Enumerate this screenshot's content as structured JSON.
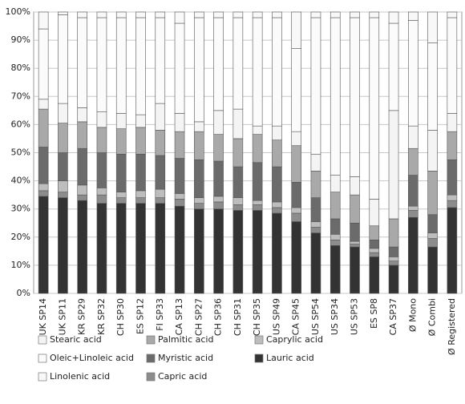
{
  "chart_data": {
    "type": "stacked_bar",
    "categories": [
      "UK SP14",
      "UK SP11",
      "KR SP29",
      "KR SP32",
      "CH SP30",
      "ES SP12",
      "FI SP33",
      "CA SP13",
      "CH SP27",
      "CH SP36",
      "CH SP31",
      "CH SP35",
      "US SP49",
      "CA SP45",
      "US SP54",
      "US SP34",
      "US SP53",
      "ES SP8",
      "CA SP37",
      "Ø Mono",
      "Ø Combi",
      "Ø Registered"
    ],
    "series": [
      {
        "name": "Stearic acid",
        "color": "#f4f4f4",
        "values": [
          3.5,
          7,
          5,
          5.5,
          5.5,
          4.5,
          9.5,
          6.5,
          3.5,
          8.5,
          10.5,
          3,
          5,
          5,
          6,
          6,
          6.5,
          9.5,
          38.5,
          8,
          14.5,
          6.5
        ]
      },
      {
        "name": "Palmitic acid",
        "color": "#a9a9a9",
        "values": [
          13.5,
          10.5,
          9.5,
          9,
          9,
          9.5,
          9,
          9.5,
          10,
          9.5,
          10,
          10,
          9.5,
          13,
          9.5,
          9.5,
          10,
          5,
          10,
          9.5,
          15.5,
          10
        ]
      },
      {
        "name": "Caprylic acid",
        "color": "#bdbdbd",
        "values": [
          2.5,
          4,
          3.5,
          2.5,
          2,
          2.5,
          3,
          2,
          2,
          2,
          2.5,
          1.5,
          2,
          2,
          2,
          2,
          1,
          1.5,
          1.5,
          1.5,
          2,
          2
        ]
      },
      {
        "name": "Oleic+Linoleic acid",
        "color": "#fbfbfb",
        "values": [
          25,
          31.5,
          32,
          33.5,
          34,
          34.5,
          30.5,
          32,
          37,
          33,
          32.5,
          38.5,
          38.5,
          29.5,
          48.5,
          56,
          56.5,
          64.5,
          31,
          37.5,
          31,
          34
        ]
      },
      {
        "name": "Myristic acid",
        "color": "#6b6b6b",
        "values": [
          13,
          10,
          13,
          12.5,
          13.5,
          13,
          12,
          12.5,
          13.5,
          12.5,
          11,
          13.5,
          12.5,
          9,
          8.5,
          5.5,
          6.5,
          3,
          3.5,
          11,
          6.5,
          12.5
        ]
      },
      {
        "name": "Lauric acid",
        "color": "#333333",
        "values": [
          34.5,
          34,
          33,
          32,
          32,
          32,
          32,
          31,
          30,
          30,
          29.5,
          29.5,
          28.5,
          25.5,
          21.5,
          17,
          16.5,
          13,
          10,
          27,
          16.5,
          30.5
        ]
      },
      {
        "name": "Linolenic acid",
        "color": "#f8f8f8",
        "values": [
          6,
          1,
          2,
          2,
          2,
          2,
          2,
          4,
          2,
          2,
          2,
          2,
          2,
          13,
          2,
          2,
          2,
          2,
          4,
          3,
          11,
          2
        ]
      },
      {
        "name": "Capric acid",
        "color": "#8c8c8c",
        "values": [
          2,
          2,
          2,
          3,
          2,
          2,
          2,
          2.5,
          2,
          2.5,
          2,
          2,
          2,
          3,
          2,
          2,
          1,
          1.5,
          1.5,
          2.5,
          3,
          2.5
        ]
      }
    ],
    "ylim": [
      0,
      100
    ],
    "yticks": [
      {
        "value": 0,
        "label": "0%"
      },
      {
        "value": 10,
        "label": "10%"
      },
      {
        "value": 20,
        "label": "20%"
      },
      {
        "value": 30,
        "label": "30%"
      },
      {
        "value": 40,
        "label": "40%"
      },
      {
        "value": 50,
        "label": "50%"
      },
      {
        "value": 60,
        "label": "60%"
      },
      {
        "value": 70,
        "label": "70%"
      },
      {
        "value": 80,
        "label": "80%"
      },
      {
        "value": 90,
        "label": "90%"
      },
      {
        "value": 100,
        "label": "100%"
      }
    ],
    "grid": true
  }
}
